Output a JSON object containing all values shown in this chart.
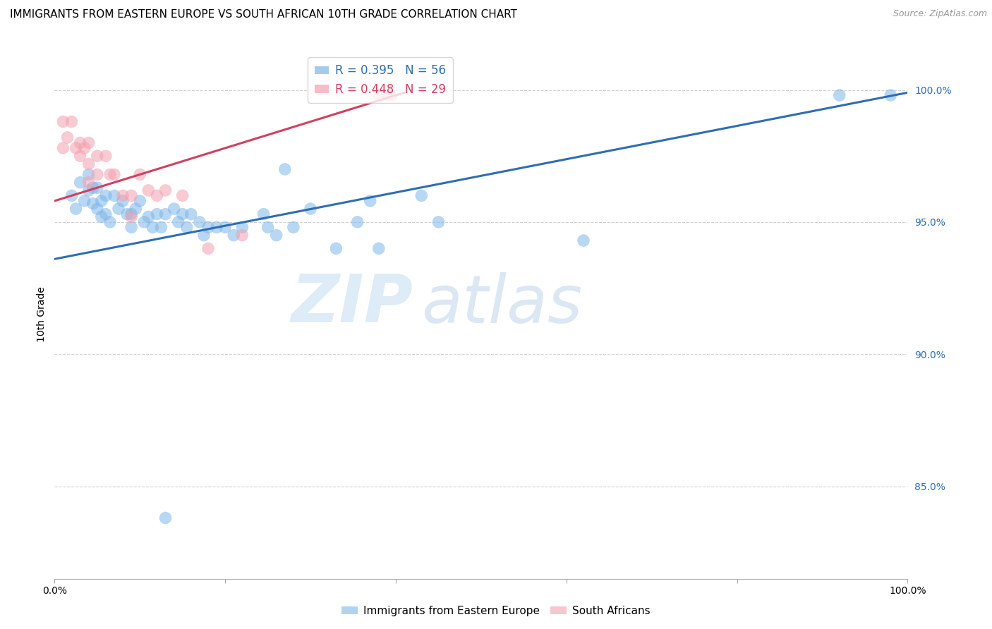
{
  "title": "IMMIGRANTS FROM EASTERN EUROPE VS SOUTH AFRICAN 10TH GRADE CORRELATION CHART",
  "source": "Source: ZipAtlas.com",
  "ylabel": "10th Grade",
  "ytick_labels": [
    "100.0%",
    "95.0%",
    "90.0%",
    "85.0%"
  ],
  "ytick_values": [
    1.0,
    0.95,
    0.9,
    0.85
  ],
  "xlim": [
    0.0,
    1.0
  ],
  "ylim": [
    0.815,
    1.015
  ],
  "legend_blue_r": "R = 0.395",
  "legend_blue_n": "N = 56",
  "legend_pink_r": "R = 0.448",
  "legend_pink_n": "N = 29",
  "blue_color": "#7EB6E8",
  "pink_color": "#F4A0B0",
  "blue_line_color": "#2E6DB4",
  "pink_line_color": "#D04060",
  "watermark_zip": "ZIP",
  "watermark_atlas": "atlas",
  "blue_scatter_x": [
    0.02,
    0.025,
    0.03,
    0.035,
    0.04,
    0.04,
    0.045,
    0.045,
    0.05,
    0.05,
    0.055,
    0.055,
    0.06,
    0.06,
    0.065,
    0.07,
    0.075,
    0.08,
    0.085,
    0.09,
    0.09,
    0.095,
    0.1,
    0.105,
    0.11,
    0.115,
    0.12,
    0.125,
    0.13,
    0.14,
    0.145,
    0.15,
    0.155,
    0.16,
    0.17,
    0.175,
    0.18,
    0.19,
    0.2,
    0.21,
    0.22,
    0.245,
    0.25,
    0.26,
    0.27,
    0.28,
    0.3,
    0.33,
    0.355,
    0.37,
    0.38,
    0.43,
    0.45,
    0.62,
    0.92,
    0.98
  ],
  "blue_scatter_y": [
    0.96,
    0.955,
    0.965,
    0.958,
    0.968,
    0.962,
    0.963,
    0.957,
    0.963,
    0.955,
    0.958,
    0.952,
    0.96,
    0.953,
    0.95,
    0.96,
    0.955,
    0.958,
    0.953,
    0.953,
    0.948,
    0.955,
    0.958,
    0.95,
    0.952,
    0.948,
    0.953,
    0.948,
    0.953,
    0.955,
    0.95,
    0.953,
    0.948,
    0.953,
    0.95,
    0.945,
    0.948,
    0.948,
    0.948,
    0.945,
    0.948,
    0.953,
    0.948,
    0.945,
    0.97,
    0.948,
    0.955,
    0.94,
    0.95,
    0.958,
    0.94,
    0.96,
    0.95,
    0.943,
    0.998,
    0.998
  ],
  "blue_scatter_outlier_x": [
    0.13
  ],
  "blue_scatter_outlier_y": [
    0.838
  ],
  "pink_scatter_x": [
    0.01,
    0.01,
    0.015,
    0.02,
    0.025,
    0.03,
    0.03,
    0.035,
    0.04,
    0.04,
    0.04,
    0.05,
    0.05,
    0.06,
    0.065,
    0.07,
    0.08,
    0.09,
    0.09,
    0.1,
    0.11,
    0.12,
    0.13,
    0.15,
    0.18,
    0.22,
    0.38,
    0.39,
    0.395
  ],
  "pink_scatter_y": [
    0.988,
    0.978,
    0.982,
    0.988,
    0.978,
    0.98,
    0.975,
    0.978,
    0.98,
    0.972,
    0.965,
    0.975,
    0.968,
    0.975,
    0.968,
    0.968,
    0.96,
    0.96,
    0.952,
    0.968,
    0.962,
    0.96,
    0.962,
    0.96,
    0.94,
    0.945,
    0.998,
    0.998,
    0.998
  ],
  "blue_line_x0": 0.0,
  "blue_line_x1": 1.0,
  "blue_line_y0": 0.936,
  "blue_line_y1": 0.999,
  "pink_line_x0": 0.0,
  "pink_line_x1": 0.41,
  "pink_line_y0": 0.958,
  "pink_line_y1": 0.999,
  "grid_color": "#CCCCCC",
  "background_color": "#FFFFFF",
  "title_fontsize": 11,
  "axis_label_fontsize": 10,
  "tick_fontsize": 10,
  "legend_fontsize": 12
}
